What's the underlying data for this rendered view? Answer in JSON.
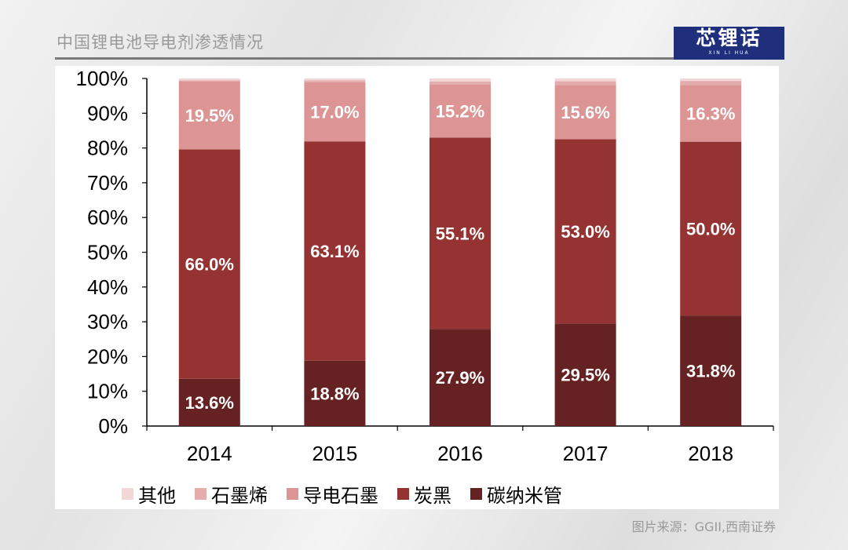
{
  "header": {
    "title": "中国锂电池导电剂渗透情况",
    "logo_text": "芯锂话",
    "logo_subtext": "XIN LI HUA"
  },
  "source": "图片来源：GGII,西南证券",
  "colors": {
    "其他": "#f3d6d6",
    "石墨烯": "#e4adad",
    "导电石墨": "#dc9494",
    "炭黑": "#953333",
    "碳纳米管": "#662222"
  },
  "chart_data": {
    "type": "bar",
    "stacked": true,
    "categories": [
      "2014",
      "2015",
      "2016",
      "2017",
      "2018"
    ],
    "series": [
      {
        "name": "碳纳米管",
        "values": [
          13.6,
          18.8,
          27.9,
          29.5,
          31.8
        ],
        "labels": [
          "13.6%",
          "18.8%",
          "27.9%",
          "29.5%",
          "31.8%"
        ]
      },
      {
        "name": "炭黑",
        "values": [
          66.0,
          63.1,
          55.1,
          53.0,
          50.0
        ],
        "labels": [
          "66.0%",
          "63.1%",
          "55.1%",
          "53.0%",
          "50.0%"
        ]
      },
      {
        "name": "导电石墨",
        "values": [
          19.5,
          17.0,
          15.2,
          15.6,
          16.3
        ],
        "labels": [
          "19.5%",
          "17.0%",
          "15.2%",
          "15.6%",
          "16.3%"
        ]
      },
      {
        "name": "石墨烯",
        "values": [
          0.4,
          0.6,
          0.9,
          1.1,
          1.2
        ]
      },
      {
        "name": "其他",
        "values": [
          0.5,
          0.5,
          0.9,
          0.8,
          0.7
        ]
      }
    ],
    "legend_order": [
      "其他",
      "石墨烯",
      "导电石墨",
      "炭黑",
      "碳纳米管"
    ],
    "ylim": [
      0,
      100
    ],
    "yticks": [
      "0%",
      "10%",
      "20%",
      "30%",
      "40%",
      "50%",
      "60%",
      "70%",
      "80%",
      "90%",
      "100%"
    ],
    "grid": false,
    "legend_position": "bottom"
  }
}
